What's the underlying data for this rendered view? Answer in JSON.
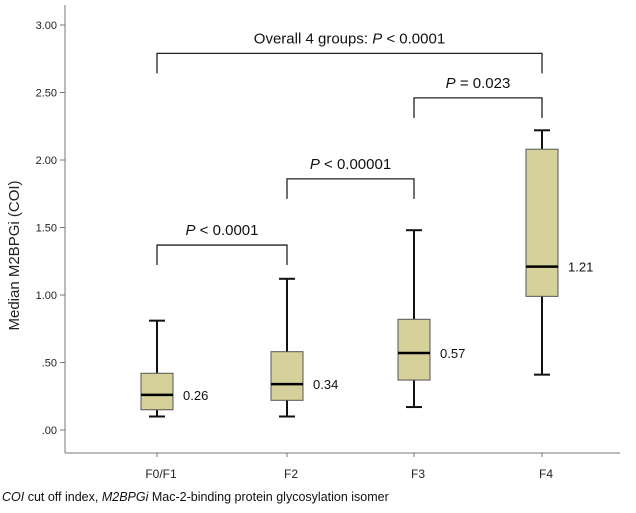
{
  "chart_data": {
    "type": "box",
    "ylabel": "Median M2BPGi (COI)",
    "xlabel": "",
    "ylim": [
      0,
      3.0
    ],
    "yticks": [
      ".00",
      ".50",
      "1.00",
      "1.50",
      "2.00",
      "2.50",
      "3.00"
    ],
    "ytick_values": [
      0,
      0.5,
      1.0,
      1.5,
      2.0,
      2.5,
      3.0
    ],
    "categories": [
      "F0/F1",
      "F2",
      "F3",
      "F4"
    ],
    "boxes": [
      {
        "whisker_low": 0.1,
        "q1": 0.15,
        "median": 0.26,
        "q3": 0.42,
        "whisker_high": 0.81,
        "label": "0.26"
      },
      {
        "whisker_low": 0.1,
        "q1": 0.22,
        "median": 0.34,
        "q3": 0.58,
        "whisker_high": 1.12,
        "label": "0.34"
      },
      {
        "whisker_low": 0.17,
        "q1": 0.37,
        "median": 0.57,
        "q3": 0.82,
        "whisker_high": 1.48,
        "label": "0.57"
      },
      {
        "whisker_low": 0.41,
        "q1": 0.99,
        "median": 1.21,
        "q3": 2.08,
        "whisker_high": 2.22,
        "label": "1.21"
      }
    ],
    "box_color": "#d6d09a",
    "grid": false,
    "annotations": [
      {
        "from": 0,
        "to": 3,
        "level": 2.79,
        "prefix": "Overall 4 groups: ",
        "p": "P",
        "text": " < 0.0001"
      },
      {
        "from": 2,
        "to": 3,
        "level": 2.46,
        "prefix": "",
        "p": "P",
        "text": " = 0.023"
      },
      {
        "from": 1,
        "to": 2,
        "level": 1.86,
        "prefix": "",
        "p": "P",
        "text": " < 0.00001"
      },
      {
        "from": 0,
        "to": 1,
        "level": 1.37,
        "prefix": "",
        "p": "P",
        "text": " < 0.0001"
      }
    ]
  },
  "caption": {
    "abbr1": "COI",
    "def1": " cut off index, ",
    "abbr2": "M2BPGi",
    "def2": " Mac-2-binding protein glycosylation isomer"
  }
}
